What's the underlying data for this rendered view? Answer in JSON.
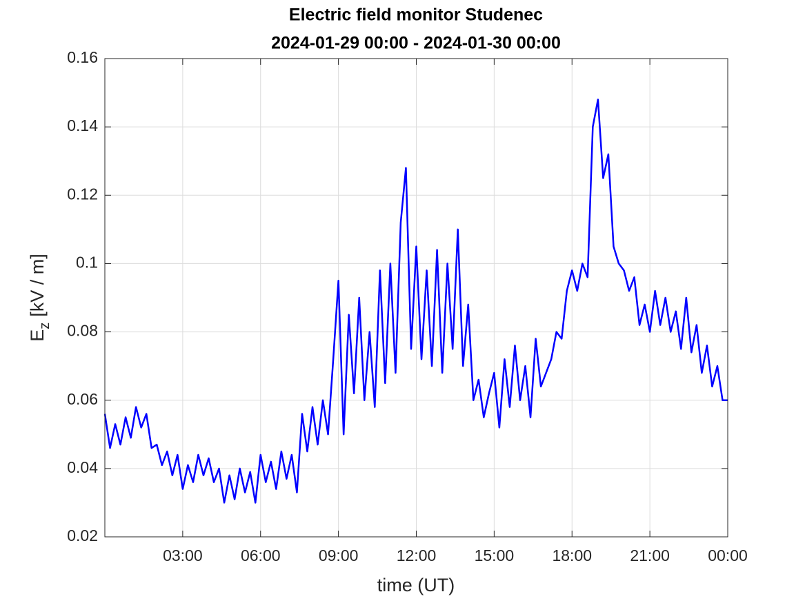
{
  "chart_data": {
    "type": "line",
    "title": "Electric field monitor Studenec",
    "subtitle": "2024-01-29 00:00 - 2024-01-30 00:00",
    "x_label": "time (UT)",
    "y_label_symbol": "E",
    "y_label_subscript": "z",
    "y_label_unit": "[kV / m]",
    "color": "#0000ff",
    "grid": true,
    "xlim": [
      0,
      24
    ],
    "xticks": [
      {
        "value": 3,
        "label": "03:00"
      },
      {
        "value": 6,
        "label": "06:00"
      },
      {
        "value": 9,
        "label": "09:00"
      },
      {
        "value": 12,
        "label": "12:00"
      },
      {
        "value": 15,
        "label": "15:00"
      },
      {
        "value": 18,
        "label": "18:00"
      },
      {
        "value": 21,
        "label": "21:00"
      },
      {
        "value": 24,
        "label": "00:00"
      }
    ],
    "ylim": [
      0.02,
      0.16
    ],
    "yticks": [
      0.02,
      0.04,
      0.06,
      0.08,
      0.1,
      0.12,
      0.14,
      0.16
    ],
    "x": [
      0,
      0.2,
      0.4,
      0.6,
      0.8,
      1,
      1.2,
      1.4,
      1.6,
      1.8,
      2,
      2.2,
      2.4,
      2.6,
      2.8,
      3,
      3.2,
      3.4,
      3.6,
      3.8,
      4,
      4.2,
      4.4,
      4.6,
      4.8,
      5,
      5.2,
      5.4,
      5.6,
      5.8,
      6,
      6.2,
      6.4,
      6.6,
      6.8,
      7,
      7.2,
      7.4,
      7.6,
      7.8,
      8,
      8.2,
      8.4,
      8.6,
      8.8,
      9,
      9.2,
      9.4,
      9.6,
      9.8,
      10,
      10.2,
      10.4,
      10.6,
      10.8,
      11,
      11.2,
      11.4,
      11.6,
      11.8,
      12,
      12.2,
      12.4,
      12.6,
      12.8,
      13,
      13.2,
      13.4,
      13.6,
      13.8,
      14,
      14.2,
      14.4,
      14.6,
      14.8,
      15,
      15.2,
      15.4,
      15.6,
      15.8,
      16,
      16.2,
      16.4,
      16.6,
      16.8,
      17,
      17.2,
      17.4,
      17.6,
      17.8,
      18,
      18.2,
      18.4,
      18.6,
      18.8,
      19,
      19.2,
      19.4,
      19.6,
      19.8,
      20,
      20.2,
      20.4,
      20.6,
      20.8,
      21,
      21.2,
      21.4,
      21.6,
      21.8,
      22,
      22.2,
      22.4,
      22.6,
      22.8,
      23,
      23.2,
      23.4,
      23.6,
      23.8,
      24
    ],
    "values": [
      0.056,
      0.046,
      0.053,
      0.047,
      0.055,
      0.049,
      0.058,
      0.052,
      0.056,
      0.046,
      0.047,
      0.041,
      0.045,
      0.038,
      0.044,
      0.034,
      0.041,
      0.036,
      0.044,
      0.038,
      0.043,
      0.036,
      0.04,
      0.03,
      0.038,
      0.031,
      0.04,
      0.033,
      0.039,
      0.03,
      0.044,
      0.036,
      0.042,
      0.034,
      0.045,
      0.037,
      0.044,
      0.033,
      0.056,
      0.045,
      0.058,
      0.047,
      0.06,
      0.05,
      0.072,
      0.095,
      0.05,
      0.085,
      0.062,
      0.09,
      0.06,
      0.08,
      0.058,
      0.098,
      0.065,
      0.1,
      0.068,
      0.112,
      0.128,
      0.075,
      0.105,
      0.072,
      0.098,
      0.07,
      0.104,
      0.068,
      0.1,
      0.075,
      0.11,
      0.07,
      0.088,
      0.06,
      0.066,
      0.055,
      0.062,
      0.068,
      0.052,
      0.072,
      0.058,
      0.076,
      0.06,
      0.07,
      0.055,
      0.078,
      0.064,
      0.068,
      0.072,
      0.08,
      0.078,
      0.092,
      0.098,
      0.092,
      0.1,
      0.096,
      0.14,
      0.148,
      0.125,
      0.132,
      0.105,
      0.1,
      0.098,
      0.092,
      0.096,
      0.082,
      0.088,
      0.08,
      0.092,
      0.082,
      0.09,
      0.08,
      0.086,
      0.075,
      0.09,
      0.074,
      0.082,
      0.068,
      0.076,
      0.064,
      0.07,
      0.06,
      0.06
    ]
  }
}
